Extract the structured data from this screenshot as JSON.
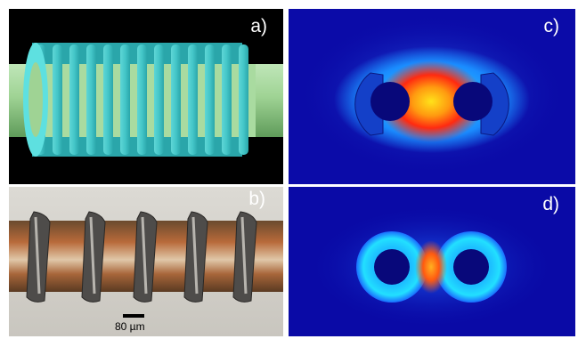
{
  "panels": {
    "a": {
      "label": "a)"
    },
    "b": {
      "label": "b)",
      "scale_bar": "80 µm"
    },
    "c": {
      "label": "c)"
    },
    "d": {
      "label": "d)"
    }
  }
}
